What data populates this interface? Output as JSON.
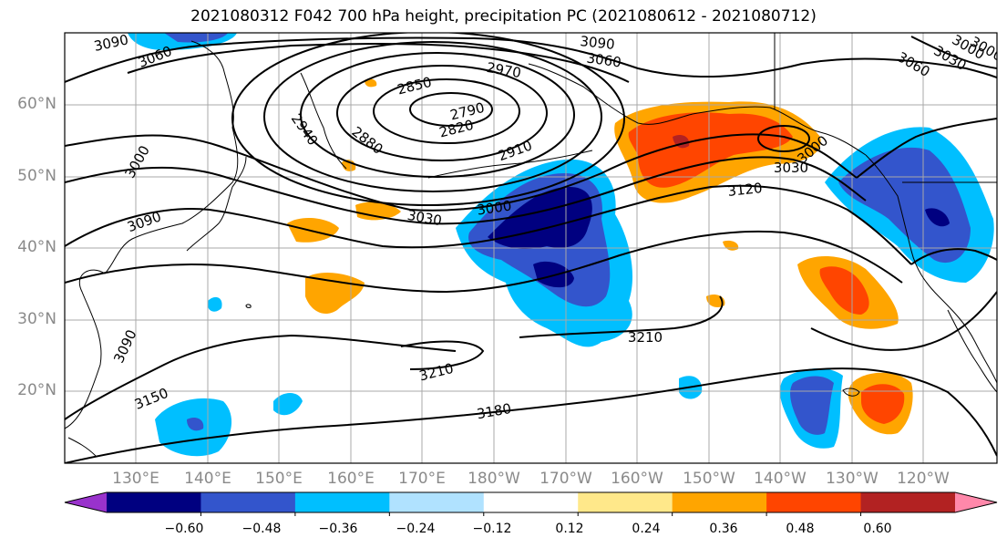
{
  "title": "2021080312 F042 700 hPa height, precipitation PC (2021080612 - 2021080712)",
  "lat_labels": [
    "60°N",
    "50°N",
    "40°N",
    "30°N",
    "20°N"
  ],
  "lon_labels": [
    "130°E",
    "140°E",
    "150°E",
    "160°E",
    "170°E",
    "180°W",
    "170°W",
    "160°W",
    "150°W",
    "140°W",
    "130°W",
    "120°W"
  ],
  "contour_labels": [
    "3090",
    "3060",
    "3090",
    "3060",
    "2970",
    "2850",
    "2790",
    "2820",
    "2940",
    "2880",
    "2910",
    "3000",
    "3000",
    "3090",
    "3030",
    "3000",
    "3120",
    "3030",
    "3000",
    "3030",
    "3060",
    "3000",
    "3090",
    "3210",
    "3210",
    "3150",
    "3180"
  ],
  "colorbar": {
    "ticks": [
      "−0.60",
      "−0.48",
      "−0.36",
      "−0.24",
      "−0.12",
      "0.12",
      "0.24",
      "0.36",
      "0.48",
      "0.60"
    ],
    "colors": [
      "#9932cc",
      "#000080",
      "#3355cc",
      "#00bfff",
      "#b0e2ff",
      "#ffffff",
      "#ffe88a",
      "#ffa500",
      "#ff4500",
      "#b22222",
      "#ff88aa"
    ]
  },
  "colors": {
    "strong_negative": "#000080",
    "negative": "#3355cc",
    "weak_negative": "#00bfff",
    "faint_negative": "#b0e2ff",
    "faint_positive": "#ffe88a",
    "positive": "#ffa500",
    "strong_positive": "#ff4500",
    "extreme_positive": "#b22222"
  }
}
